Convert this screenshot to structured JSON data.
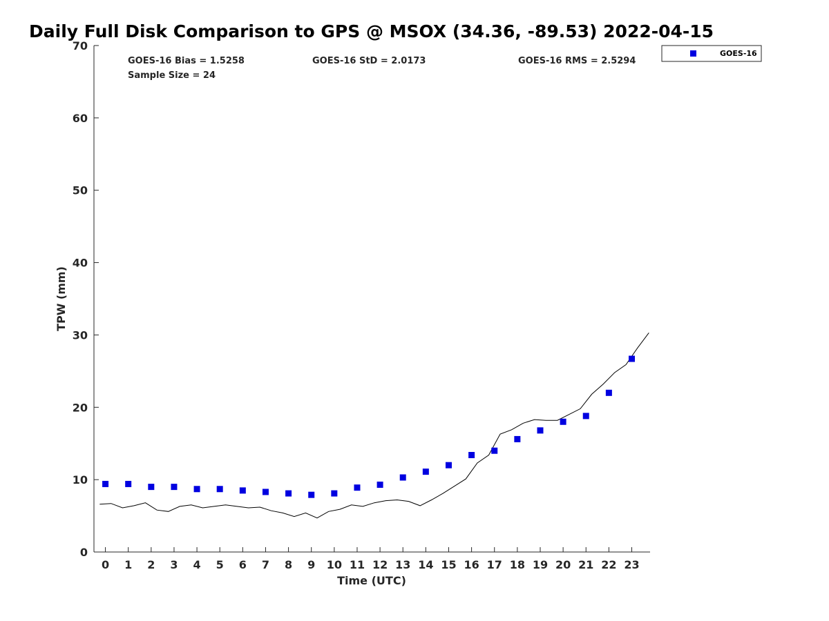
{
  "chart_data": {
    "type": "scatter",
    "title": "Daily Full Disk Comparison to GPS @ MSOX (34.36, -89.53) 2022-04-15",
    "xlabel": "Time (UTC)",
    "ylabel": "TPW (mm)",
    "xlim": [
      -0.5,
      23.8
    ],
    "ylim": [
      0,
      70
    ],
    "x_ticks": [
      0,
      1,
      2,
      3,
      4,
      5,
      6,
      7,
      8,
      9,
      10,
      11,
      12,
      13,
      14,
      15,
      16,
      17,
      18,
      19,
      20,
      21,
      22,
      23
    ],
    "y_ticks": [
      0,
      10,
      20,
      30,
      40,
      50,
      60,
      70
    ],
    "grid": false,
    "legend_position": "top-right outside",
    "stats": {
      "bias": "GOES-16 Bias = 1.5258",
      "std": "GOES-16 StD = 2.0173",
      "rms": "GOES-16 RMS = 2.5294",
      "sample": "Sample Size = 24"
    },
    "series": [
      {
        "name": "GOES-16",
        "kind": "markers",
        "color": "#0000e0",
        "x": [
          0,
          1,
          2,
          3,
          4,
          5,
          6,
          7,
          8,
          9,
          10,
          11,
          12,
          13,
          14,
          15,
          16,
          17,
          18,
          19,
          20,
          21,
          22,
          23
        ],
        "y": [
          9.4,
          9.4,
          9.0,
          9.0,
          8.7,
          8.7,
          8.5,
          8.3,
          8.1,
          7.9,
          8.1,
          8.9,
          9.3,
          10.3,
          11.1,
          12.0,
          13.4,
          14.0,
          15.6,
          16.8,
          18.0,
          18.8,
          22.0,
          26.7
        ]
      },
      {
        "kind": "line",
        "color": "#000000",
        "x": [
          -0.25,
          0.25,
          0.75,
          1.25,
          1.75,
          2.25,
          2.75,
          3.25,
          3.75,
          4.25,
          4.75,
          5.25,
          5.75,
          6.25,
          6.75,
          7.25,
          7.75,
          8.25,
          8.75,
          9.25,
          9.75,
          10.25,
          10.75,
          11.25,
          11.75,
          12.25,
          12.75,
          13.25,
          13.75,
          14.25,
          14.75,
          15.25,
          15.75,
          16.25,
          16.75,
          17.25,
          17.75,
          18.25,
          18.75,
          19.25,
          19.75,
          20.25,
          20.75,
          21.25,
          21.75,
          22.25,
          22.75,
          23.25,
          23.75
        ],
        "y": [
          6.6,
          6.7,
          6.1,
          6.4,
          6.8,
          5.8,
          5.6,
          6.3,
          6.5,
          6.1,
          6.3,
          6.5,
          6.3,
          6.1,
          6.2,
          5.7,
          5.4,
          4.9,
          5.4,
          4.7,
          5.6,
          5.9,
          6.5,
          6.3,
          6.8,
          7.1,
          7.2,
          7.0,
          6.4,
          7.2,
          8.1,
          9.1,
          10.1,
          12.3,
          13.4,
          16.3,
          16.9,
          17.8,
          18.3,
          18.2,
          18.2,
          19.0,
          19.8,
          21.8,
          23.2,
          24.8,
          25.9,
          28.2,
          30.3
        ]
      }
    ]
  }
}
